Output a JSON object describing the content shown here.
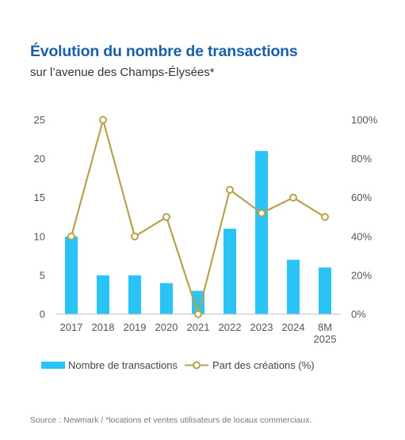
{
  "header": {
    "title": "Évolution du nombre de transactions",
    "subtitle": "sur l’avenue des Champs-Élysées*"
  },
  "source": "Source : Newmark / *locations et ventes utilisateurs de locaux commerciaux.",
  "colors": {
    "bar": "#29c3f5",
    "line": "#b8a24e",
    "title": "#1a5fa8"
  },
  "chart_data": {
    "type": "bar+line",
    "categories": [
      "2017",
      "2018",
      "2019",
      "2020",
      "2021",
      "2022",
      "2023",
      "2024",
      "8M 2025"
    ],
    "series": [
      {
        "name": "Nombre de transactions",
        "type": "bar",
        "axis": "left",
        "values": [
          10,
          5,
          5,
          4,
          3,
          11,
          21,
          7,
          6
        ]
      },
      {
        "name": "Part des créations (%)",
        "type": "line",
        "axis": "right",
        "values": [
          40,
          100,
          40,
          50,
          0,
          64,
          52,
          60,
          50
        ]
      }
    ],
    "y_left": {
      "lim": [
        0,
        25
      ],
      "ticks": [
        "0",
        "5",
        "10",
        "15",
        "20",
        "25"
      ]
    },
    "y_right": {
      "lim": [
        0,
        100
      ],
      "ticks": [
        "0%",
        "20%",
        "40%",
        "60%",
        "80%",
        "100%"
      ]
    },
    "legend_position": "bottom-left",
    "grid": false
  }
}
